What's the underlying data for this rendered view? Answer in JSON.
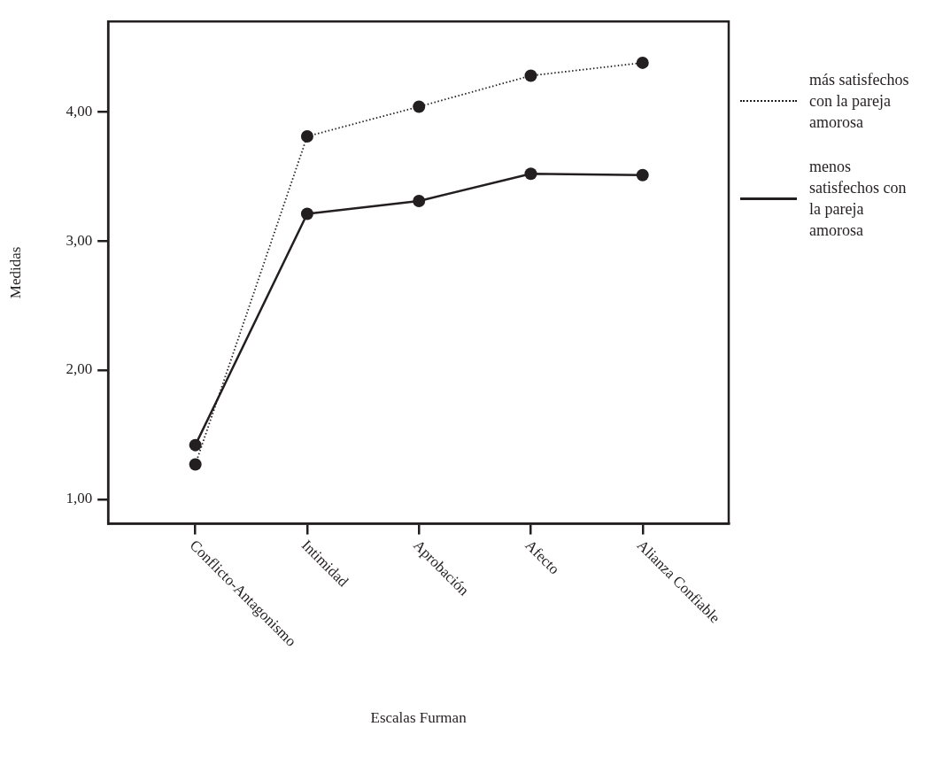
{
  "chart_data": {
    "type": "line",
    "xlabel": "Escalas Furman",
    "ylabel": "Medidas",
    "categories": [
      "Conflicto-Antagonismo",
      "Intimidad",
      "Aprobación",
      "Afecto",
      "Alianza Confiable"
    ],
    "series": [
      {
        "name": "más satisfechos con la pareja amorosa",
        "color": "#231f20",
        "line_style": "dotted",
        "values": [
          1.27,
          3.81,
          4.04,
          4.28,
          4.38
        ]
      },
      {
        "name": "menos satisfechos con la pareja amorosa",
        "color": "#231f20",
        "line_style": "solid",
        "values": [
          1.42,
          3.21,
          3.31,
          3.52,
          3.51
        ]
      }
    ],
    "ylim": [
      0.81,
      4.7
    ],
    "yticks": [
      {
        "value": 1,
        "label": "1,00"
      },
      {
        "value": 2,
        "label": "2,00"
      },
      {
        "value": 3,
        "label": "3,00"
      },
      {
        "value": 4,
        "label": "4,00"
      }
    ],
    "legend": "right",
    "marker": "circle"
  }
}
